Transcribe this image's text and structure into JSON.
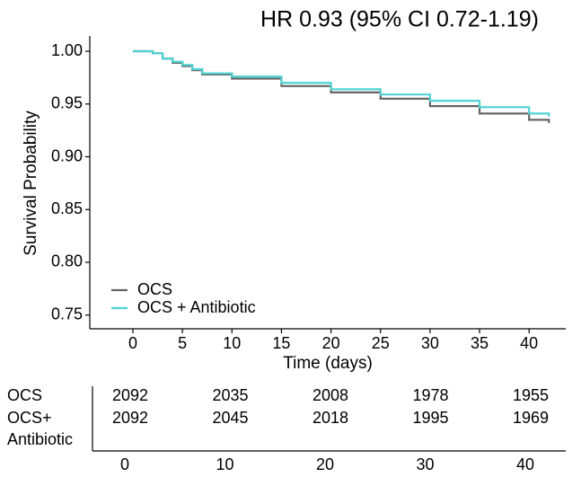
{
  "chart_data": {
    "type": "line",
    "step": true,
    "title": "HR 0.93 (95% CI 0.72-1.19)",
    "x_label": "Time (days)",
    "y_label": "Survival Probability",
    "x": [
      0,
      2,
      3,
      4,
      5,
      6,
      7,
      10,
      15,
      20,
      25,
      30,
      35,
      40,
      42
    ],
    "series": [
      {
        "name": "OCS",
        "color": "#666666",
        "values": [
          1.0,
          0.998,
          0.993,
          0.989,
          0.986,
          0.982,
          0.978,
          0.974,
          0.967,
          0.961,
          0.955,
          0.948,
          0.941,
          0.935,
          0.932
        ]
      },
      {
        "name": "OCS + Antibiotic",
        "color": "#4fd2d2",
        "values": [
          1.0,
          0.998,
          0.993,
          0.99,
          0.987,
          0.983,
          0.979,
          0.976,
          0.97,
          0.964,
          0.959,
          0.953,
          0.947,
          0.941,
          0.938
        ]
      }
    ],
    "xlim": [
      -4.35,
      43.7
    ],
    "xticks": [
      0,
      5,
      10,
      15,
      20,
      25,
      30,
      35,
      40
    ],
    "ylim": [
      0.737,
      1.0145
    ],
    "yticks": [
      0.75,
      {
        "value": 0.8,
        "label": "0.80"
      },
      0.85,
      {
        "value": 0.9,
        "label": "0.90"
      },
      0.95,
      {
        "value": 1.0,
        "label": "1.00"
      }
    ],
    "grid": false,
    "legend": "bottom-left"
  },
  "risk_table": {
    "times": [
      0,
      10,
      20,
      30,
      40
    ],
    "rows": [
      {
        "label": [
          "OCS"
        ],
        "values": [
          2092,
          2035,
          2008,
          1978,
          1955
        ]
      },
      {
        "label": [
          "OCS+",
          "Antibiotic"
        ],
        "values": [
          2092,
          2045,
          2018,
          1995,
          1969
        ]
      }
    ]
  }
}
